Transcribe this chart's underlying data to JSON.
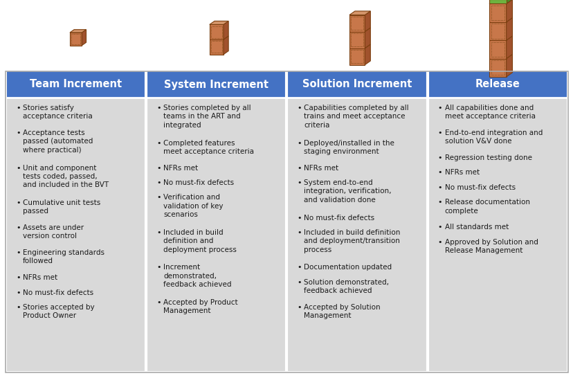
{
  "header_bg_color": "#4472C4",
  "header_text_color": "#FFFFFF",
  "cell_bg_color": "#D9D9D9",
  "border_color": "#FFFFFF",
  "text_color": "#1A1A1A",
  "fig_bg_color": "#FFFFFF",
  "columns": [
    "Team Increment",
    "System Increment",
    "Solution Increment",
    "Release"
  ],
  "bullet_items": [
    [
      "Stories satisfy\nacceptance criteria",
      "Acceptance tests\npassed (automated\nwhere practical)",
      "Unit and component\ntests coded, passed,\nand included in the BVT",
      "Cumulative unit tests\npassed",
      "Assets are under\nversion control",
      "Engineering standards\nfollowed",
      "NFRs met",
      "No must-fix defects",
      "Stories accepted by\nProduct Owner"
    ],
    [
      "Stories completed by all\nteams in the ART and\nintegrated",
      "Completed features\nmeet acceptance criteria",
      "NFRs met",
      "No must-fix defects",
      "Verification and\nvalidation of key\nscenarios",
      "Included in build\ndefinition and\ndeployment process",
      "Increment\ndemonstrated,\nfeedback achieved",
      "Accepted by Product\nManagement"
    ],
    [
      "Capabilities completed by all\ntrains and meet acceptance\ncriteria",
      "Deployed/installed in the\nstaging environment",
      "NFRs met",
      "System end-to-end\nintegration, verification,\nand validation done",
      "No must-fix defects",
      "Included in build definition\nand deployment/transition\nprocess",
      "Documentation updated",
      "Solution demonstrated,\nfeedback achieved",
      "Accepted by Solution\nManagement"
    ],
    [
      "All capabilities done and\nmeet acceptance criteria",
      "End-to-end integration and\nsolution V&V done",
      "Regression testing done",
      "NFRs met",
      "No must-fix defects",
      "Release documentation\ncomplete",
      "All standards met",
      "Approved by Solution and\nRelease Management"
    ]
  ],
  "icon_layers": [
    1,
    2,
    3,
    4
  ],
  "box_face_color": "#C8774A",
  "box_side_color": "#A0522D",
  "box_top_color": "#D4956A",
  "box_edge_color": "#7B3F10",
  "box_dashed_color": "#9B5B2A",
  "green_color": "#6DB33F",
  "green_side_color": "#4A8A25",
  "green_top_color": "#88CC55"
}
